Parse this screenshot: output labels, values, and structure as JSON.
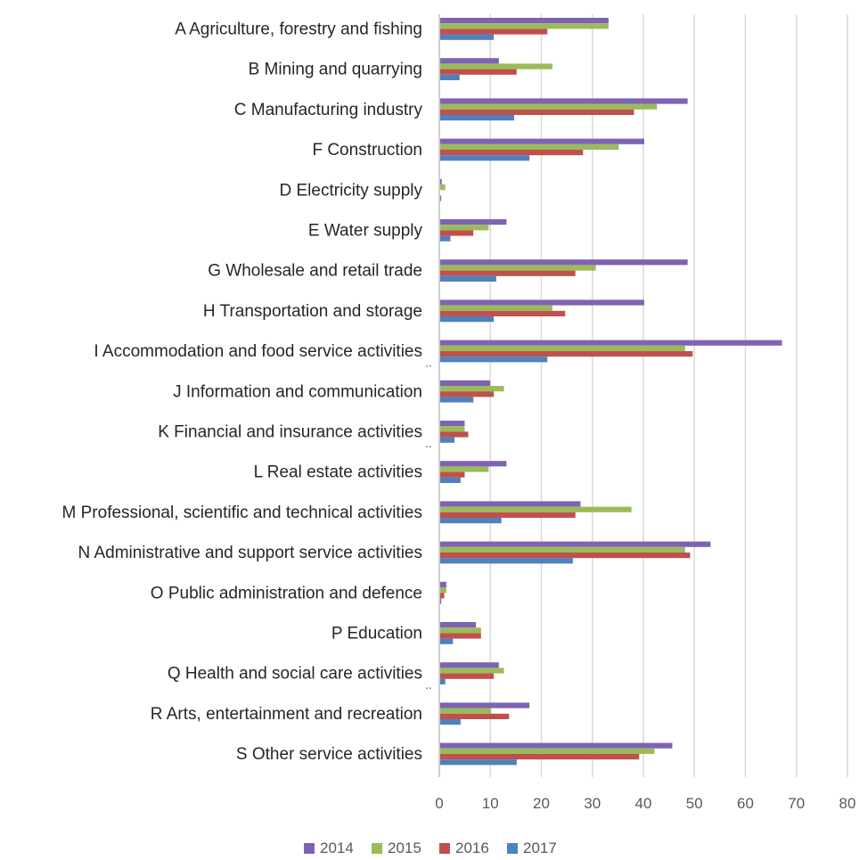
{
  "chart_data": {
    "type": "bar",
    "orientation": "horizontal",
    "categories": [
      "A Agriculture, forestry and fishing",
      "B Mining and quarrying",
      "C Manufacturing industry",
      "F Construction",
      "D Electricity supply",
      "E Water supply",
      "G Wholesale and retail trade",
      "H Transportation and storage",
      "I Accommodation and food service activities",
      "J Information and communication",
      "K Financial and insurance activities",
      "L Real estate activities",
      "M Professional, scientific and technical activities",
      "N Administrative and support service activities",
      "O Public administration and defence",
      "P Education",
      "Q Health and social care activities",
      "R Arts, entertainment and recreation",
      "S Other service activities"
    ],
    "category_notes": [
      "",
      "",
      "",
      "",
      "",
      "",
      "",
      "",
      "..",
      "",
      "..",
      "",
      "",
      "",
      "",
      "",
      "..",
      "",
      ""
    ],
    "series": [
      {
        "name": "2014",
        "color": "#7f63b2",
        "values": [
          33,
          11.5,
          48.5,
          40,
          0.3,
          13,
          48.5,
          40,
          67,
          9.8,
          4.8,
          13,
          27.5,
          53,
          1.2,
          7,
          11.5,
          17.5,
          45.5
        ]
      },
      {
        "name": "2015",
        "color": "#9bbb59",
        "values": [
          33,
          22,
          42.5,
          35,
          1,
          9.5,
          30.5,
          22,
          48,
          12.5,
          4.8,
          9.5,
          37.5,
          48,
          1.2,
          8,
          12.5,
          10,
          42
        ]
      },
      {
        "name": "2016",
        "color": "#c0504d",
        "values": [
          21,
          15,
          38,
          28,
          0,
          6.5,
          26.5,
          24.5,
          49.5,
          10.5,
          5.5,
          4.8,
          26.5,
          49,
          0.8,
          8,
          10.5,
          13.5,
          39
        ]
      },
      {
        "name": "2017",
        "color": "#4f81bd",
        "values": [
          10.5,
          3.8,
          14.5,
          17.5,
          0.2,
          2,
          11,
          10.5,
          21,
          6.5,
          2.8,
          4,
          12,
          26,
          0.2,
          2.5,
          1,
          4,
          15
        ]
      }
    ],
    "xlim": [
      0,
      80
    ],
    "xticks": [
      0,
      10,
      20,
      30,
      40,
      50,
      60,
      70,
      80
    ],
    "tick_labels": [
      "0",
      "10",
      "20",
      "30",
      "40",
      "50",
      "60",
      "70",
      "80"
    ],
    "grid": true,
    "legend_position": "bottom",
    "title": "",
    "xlabel": "",
    "ylabel": ""
  }
}
